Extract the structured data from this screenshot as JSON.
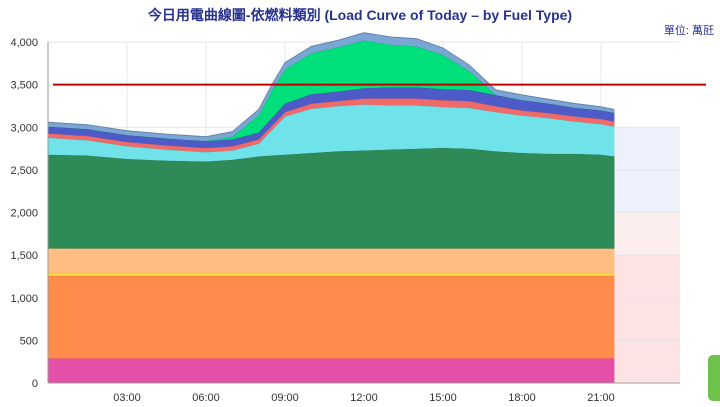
{
  "chart_data": {
    "type": "area",
    "title": "今日用電曲線圖-依燃料類別 (Load Curve of Today – by Fuel Type)",
    "unit_label": "單位: 萬瓩",
    "xlabel": "",
    "ylabel": "",
    "xlim": [
      0,
      24
    ],
    "ylim": [
      0,
      4000
    ],
    "x_ticks": [
      "03:00",
      "06:00",
      "09:00",
      "12:00",
      "15:00",
      "18:00",
      "21:00"
    ],
    "x_tick_hours": [
      3,
      6,
      9,
      12,
      15,
      18,
      21
    ],
    "y_ticks": [
      "0",
      "500",
      "1,000",
      "1,500",
      "2,000",
      "2,500",
      "3,000",
      "3,500",
      "4,000"
    ],
    "y_tick_values": [
      0,
      500,
      1000,
      1500,
      2000,
      2500,
      3000,
      3500,
      4000
    ],
    "grid": true,
    "reference_line": {
      "value": 3500,
      "color": "#c00000"
    },
    "background_bands": [
      {
        "from": 0,
        "to": 1500,
        "color": "#fde3e3"
      },
      {
        "from": 1500,
        "to": 2000,
        "color": "#fdeeee"
      },
      {
        "from": 2000,
        "to": 3000,
        "color": "#eef0fb"
      }
    ],
    "x": [
      0,
      1.5,
      3,
      4.5,
      6,
      7,
      8,
      8.5,
      9,
      10,
      11,
      12,
      13,
      14,
      15,
      16,
      17,
      18,
      19,
      20,
      21,
      21.5
    ],
    "series": [
      {
        "color": "#e64fa8",
        "values": [
          290,
          290,
          290,
          290,
          290,
          290,
          290,
          290,
          290,
          290,
          290,
          290,
          290,
          290,
          290,
          290,
          290,
          290,
          290,
          290,
          290,
          290
        ]
      },
      {
        "color": "#ff8c4a",
        "values": [
          970,
          970,
          970,
          970,
          970,
          970,
          970,
          970,
          970,
          970,
          970,
          970,
          970,
          970,
          970,
          970,
          970,
          970,
          970,
          970,
          970,
          970
        ]
      },
      {
        "color": "#ffe03a",
        "values": [
          30,
          30,
          30,
          30,
          30,
          30,
          30,
          30,
          30,
          30,
          30,
          30,
          30,
          30,
          30,
          30,
          30,
          30,
          30,
          30,
          30,
          30
        ]
      },
      {
        "color": "#ffbd82",
        "values": [
          290,
          290,
          290,
          290,
          290,
          290,
          290,
          290,
          290,
          290,
          290,
          290,
          290,
          290,
          290,
          290,
          290,
          290,
          290,
          290,
          290,
          290
        ]
      },
      {
        "color": "#2e8b57",
        "values": [
          1100,
          1090,
          1050,
          1030,
          1020,
          1040,
          1080,
          1090,
          1100,
          1120,
          1140,
          1150,
          1160,
          1170,
          1180,
          1170,
          1140,
          1120,
          1110,
          1110,
          1100,
          1080
        ]
      },
      {
        "color": "#70e2e9",
        "values": [
          200,
          180,
          150,
          130,
          110,
          110,
          150,
          300,
          450,
          520,
          530,
          540,
          520,
          510,
          480,
          480,
          460,
          440,
          420,
          380,
          360,
          350
        ]
      },
      {
        "color": "#f06a6a",
        "values": [
          50,
          50,
          50,
          50,
          50,
          50,
          50,
          50,
          50,
          60,
          60,
          70,
          80,
          80,
          80,
          80,
          70,
          60,
          60,
          60,
          60,
          60
        ]
      },
      {
        "color": "#4d5bc9",
        "values": [
          80,
          80,
          80,
          80,
          80,
          80,
          80,
          90,
          100,
          110,
          110,
          120,
          130,
          130,
          130,
          130,
          130,
          120,
          110,
          100,
          100,
          100
        ]
      },
      {
        "color": "#00e07a",
        "values": [
          0,
          0,
          0,
          0,
          0,
          30,
          200,
          320,
          400,
          480,
          520,
          560,
          500,
          480,
          400,
          220,
          0,
          0,
          0,
          0,
          0,
          0
        ]
      },
      {
        "color": "#7aa6d6",
        "values": [
          50,
          50,
          50,
          50,
          50,
          60,
          70,
          70,
          80,
          80,
          80,
          90,
          90,
          90,
          80,
          70,
          60,
          60,
          50,
          50,
          40,
          40
        ]
      }
    ]
  }
}
